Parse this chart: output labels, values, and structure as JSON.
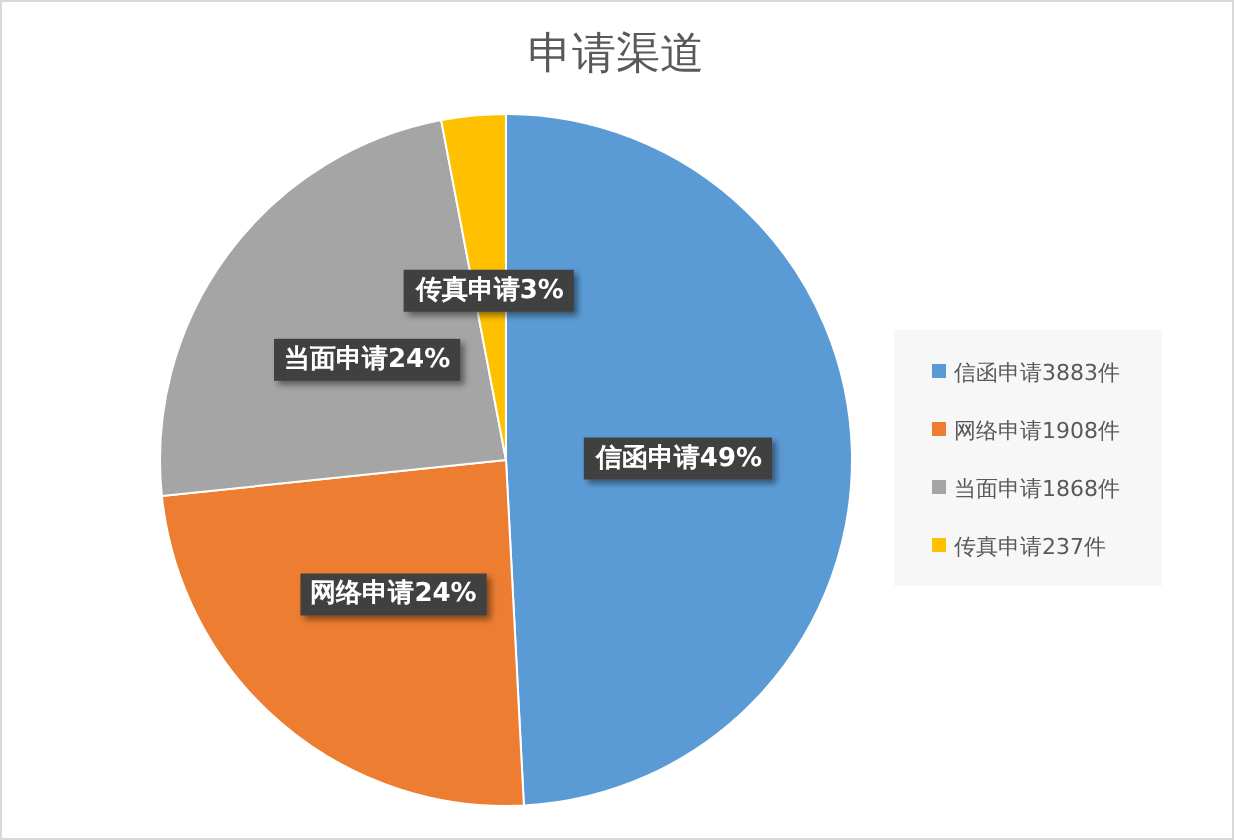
{
  "chart_data": {
    "type": "pie",
    "title": "申请渠道",
    "categories": [
      "信函申请3883件",
      "网络申请1908件",
      "当面申请1868件",
      "传真申请237件"
    ],
    "values": [
      3883,
      1908,
      1868,
      237
    ],
    "colors": [
      "#5b9bd5",
      "#ed7d31",
      "#a5a5a5",
      "#ffc000"
    ],
    "value_labels": [
      "信函申请49%",
      "网络申请24%",
      "当面申请24%",
      "传真申请3%"
    ],
    "legend": "right"
  }
}
